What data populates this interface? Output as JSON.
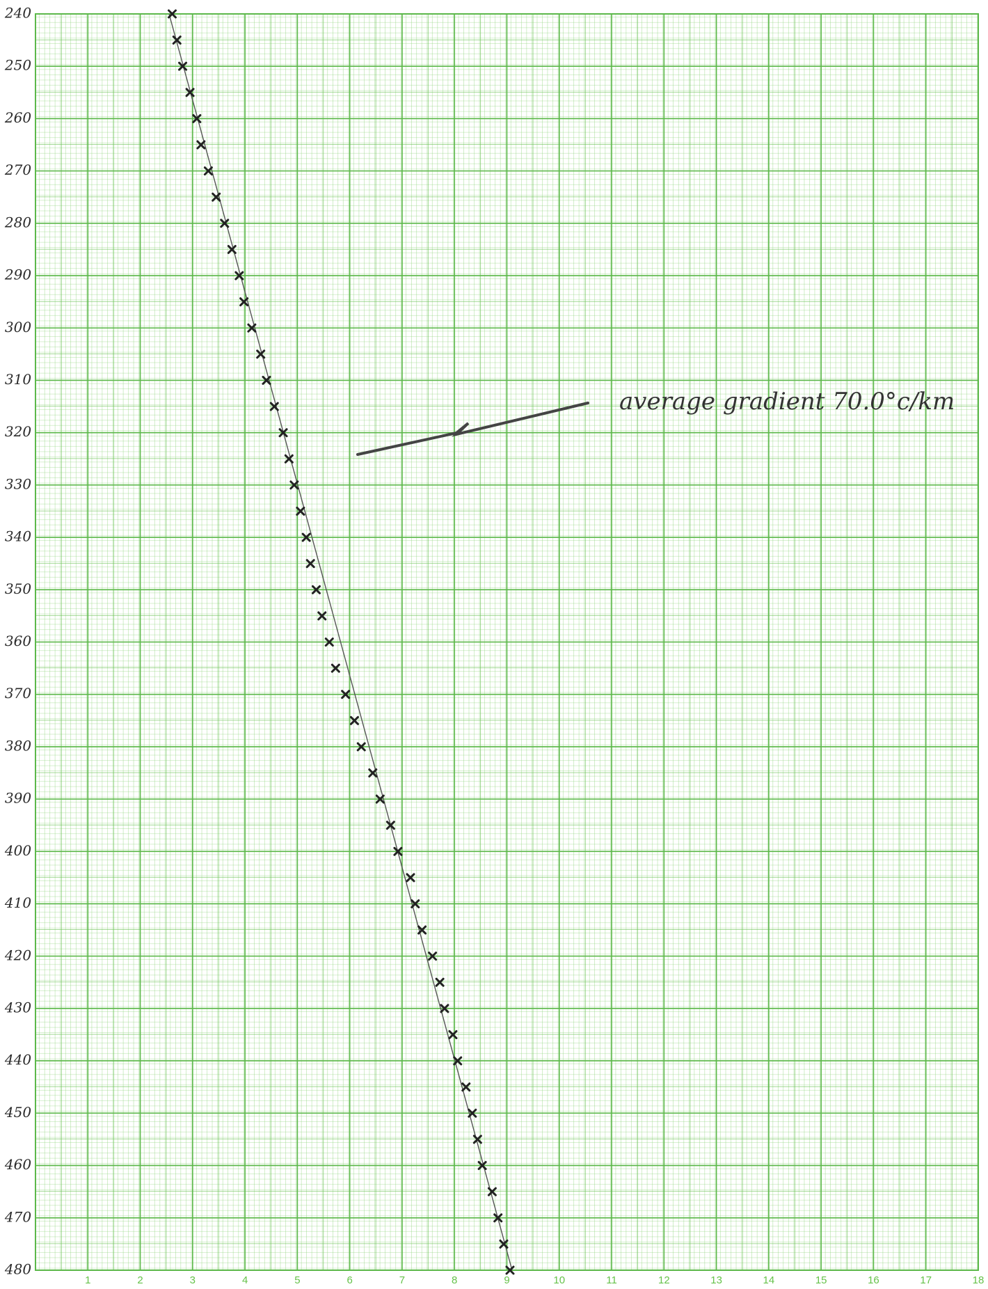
{
  "chart_data": {
    "type": "scatter",
    "annotation": "average gradient 70.0°c/km",
    "x": [
      2.61,
      2.7,
      2.81,
      2.95,
      3.08,
      3.16,
      3.3,
      3.45,
      3.61,
      3.75,
      3.89,
      3.98,
      4.13,
      4.3,
      4.41,
      4.56,
      4.73,
      4.84,
      4.94,
      5.06,
      5.17,
      5.25,
      5.36,
      5.47,
      5.61,
      5.73,
      5.92,
      6.09,
      6.22,
      6.44,
      6.58,
      6.78,
      6.92,
      7.16,
      7.25,
      7.38,
      7.58,
      7.72,
      7.81,
      7.97,
      8.06,
      8.22,
      8.34,
      8.44,
      8.53,
      8.72,
      8.83,
      8.94,
      9.06
    ],
    "values": [
      240,
      245,
      250,
      255,
      260,
      265,
      270,
      275,
      280,
      285,
      290,
      295,
      300,
      305,
      310,
      315,
      320,
      325,
      330,
      335,
      340,
      345,
      350,
      355,
      360,
      365,
      370,
      375,
      380,
      385,
      390,
      395,
      400,
      405,
      410,
      415,
      420,
      425,
      430,
      435,
      440,
      445,
      450,
      455,
      460,
      465,
      470,
      475,
      480
    ],
    "color": "#222222",
    "trend_line": {
      "x": [
        2.55,
        9.1
      ],
      "values": [
        240,
        480
      ],
      "color": "#555555"
    },
    "xlim": [
      0,
      18
    ],
    "xticks": [
      1,
      2,
      3,
      4,
      5,
      6,
      7,
      8,
      9,
      10,
      11,
      12,
      13,
      14,
      15,
      16,
      17,
      18
    ],
    "ylim": [
      240,
      480
    ],
    "yticks": [
      240,
      250,
      260,
      270,
      280,
      290,
      300,
      310,
      320,
      330,
      340,
      350,
      360,
      370,
      380,
      390,
      400,
      410,
      420,
      430,
      440,
      450,
      460,
      470,
      480
    ],
    "y_inverted": true,
    "grid": true
  }
}
